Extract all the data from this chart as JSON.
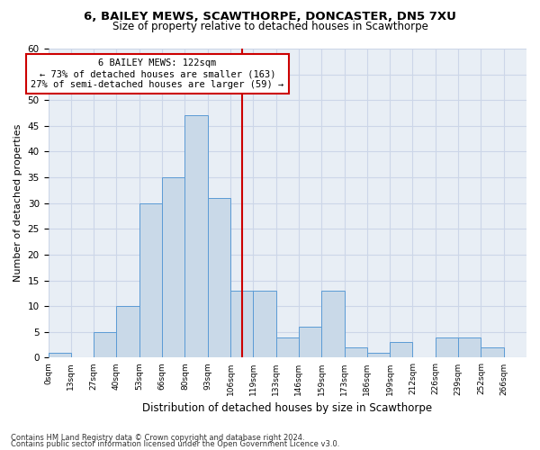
{
  "title1": "6, BAILEY MEWS, SCAWTHORPE, DONCASTER, DN5 7XU",
  "title2": "Size of property relative to detached houses in Scawthorpe",
  "xlabel": "Distribution of detached houses by size in Scawthorpe",
  "ylabel": "Number of detached properties",
  "bin_labels": [
    "0sqm",
    "13sqm",
    "27sqm",
    "40sqm",
    "53sqm",
    "66sqm",
    "80sqm",
    "93sqm",
    "106sqm",
    "119sqm",
    "133sqm",
    "146sqm",
    "159sqm",
    "173sqm",
    "186sqm",
    "199sqm",
    "212sqm",
    "226sqm",
    "239sqm",
    "252sqm",
    "266sqm"
  ],
  "bar_values": [
    1,
    0,
    5,
    10,
    30,
    35,
    47,
    31,
    13,
    13,
    4,
    6,
    13,
    2,
    1,
    3,
    0,
    4,
    4,
    2,
    0
  ],
  "bar_color": "#c9d9e8",
  "bar_edge_color": "#5b9bd5",
  "vline_x": 8.5,
  "annotation_text": "6 BAILEY MEWS: 122sqm\n← 73% of detached houses are smaller (163)\n27% of semi-detached houses are larger (59) →",
  "annotation_box_color": "#ffffff",
  "annotation_box_edge_color": "#cc0000",
  "vline_color": "#cc0000",
  "grid_color": "#ccd6e8",
  "background_color": "#e8eef5",
  "ylim": [
    0,
    60
  ],
  "yticks": [
    0,
    5,
    10,
    15,
    20,
    25,
    30,
    35,
    40,
    45,
    50,
    55,
    60
  ],
  "footer1": "Contains HM Land Registry data © Crown copyright and database right 2024.",
  "footer2": "Contains public sector information licensed under the Open Government Licence v3.0."
}
